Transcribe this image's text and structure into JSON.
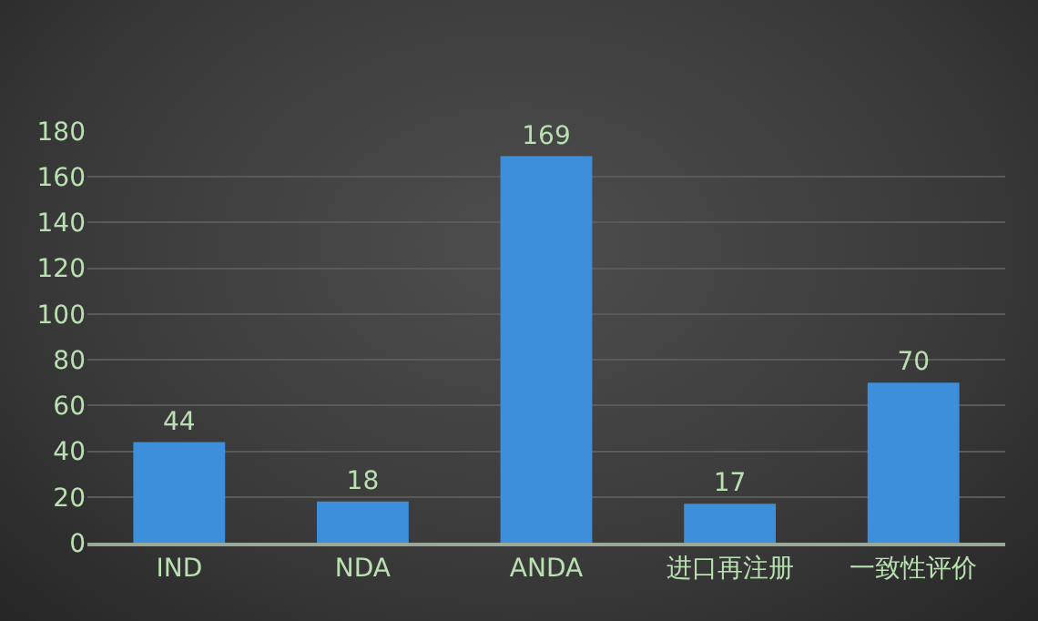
{
  "chart_data": {
    "type": "bar",
    "categories": [
      "IND",
      "NDA",
      "ANDA",
      "进口再注册",
      "一致性评价"
    ],
    "values": [
      44,
      18,
      169,
      17,
      70
    ],
    "color": "#3d8fdc",
    "ylim": [
      0,
      180
    ],
    "yticks": [
      0,
      20,
      40,
      60,
      80,
      100,
      120,
      140,
      160,
      180
    ],
    "grid": "y",
    "data_labels": true
  }
}
